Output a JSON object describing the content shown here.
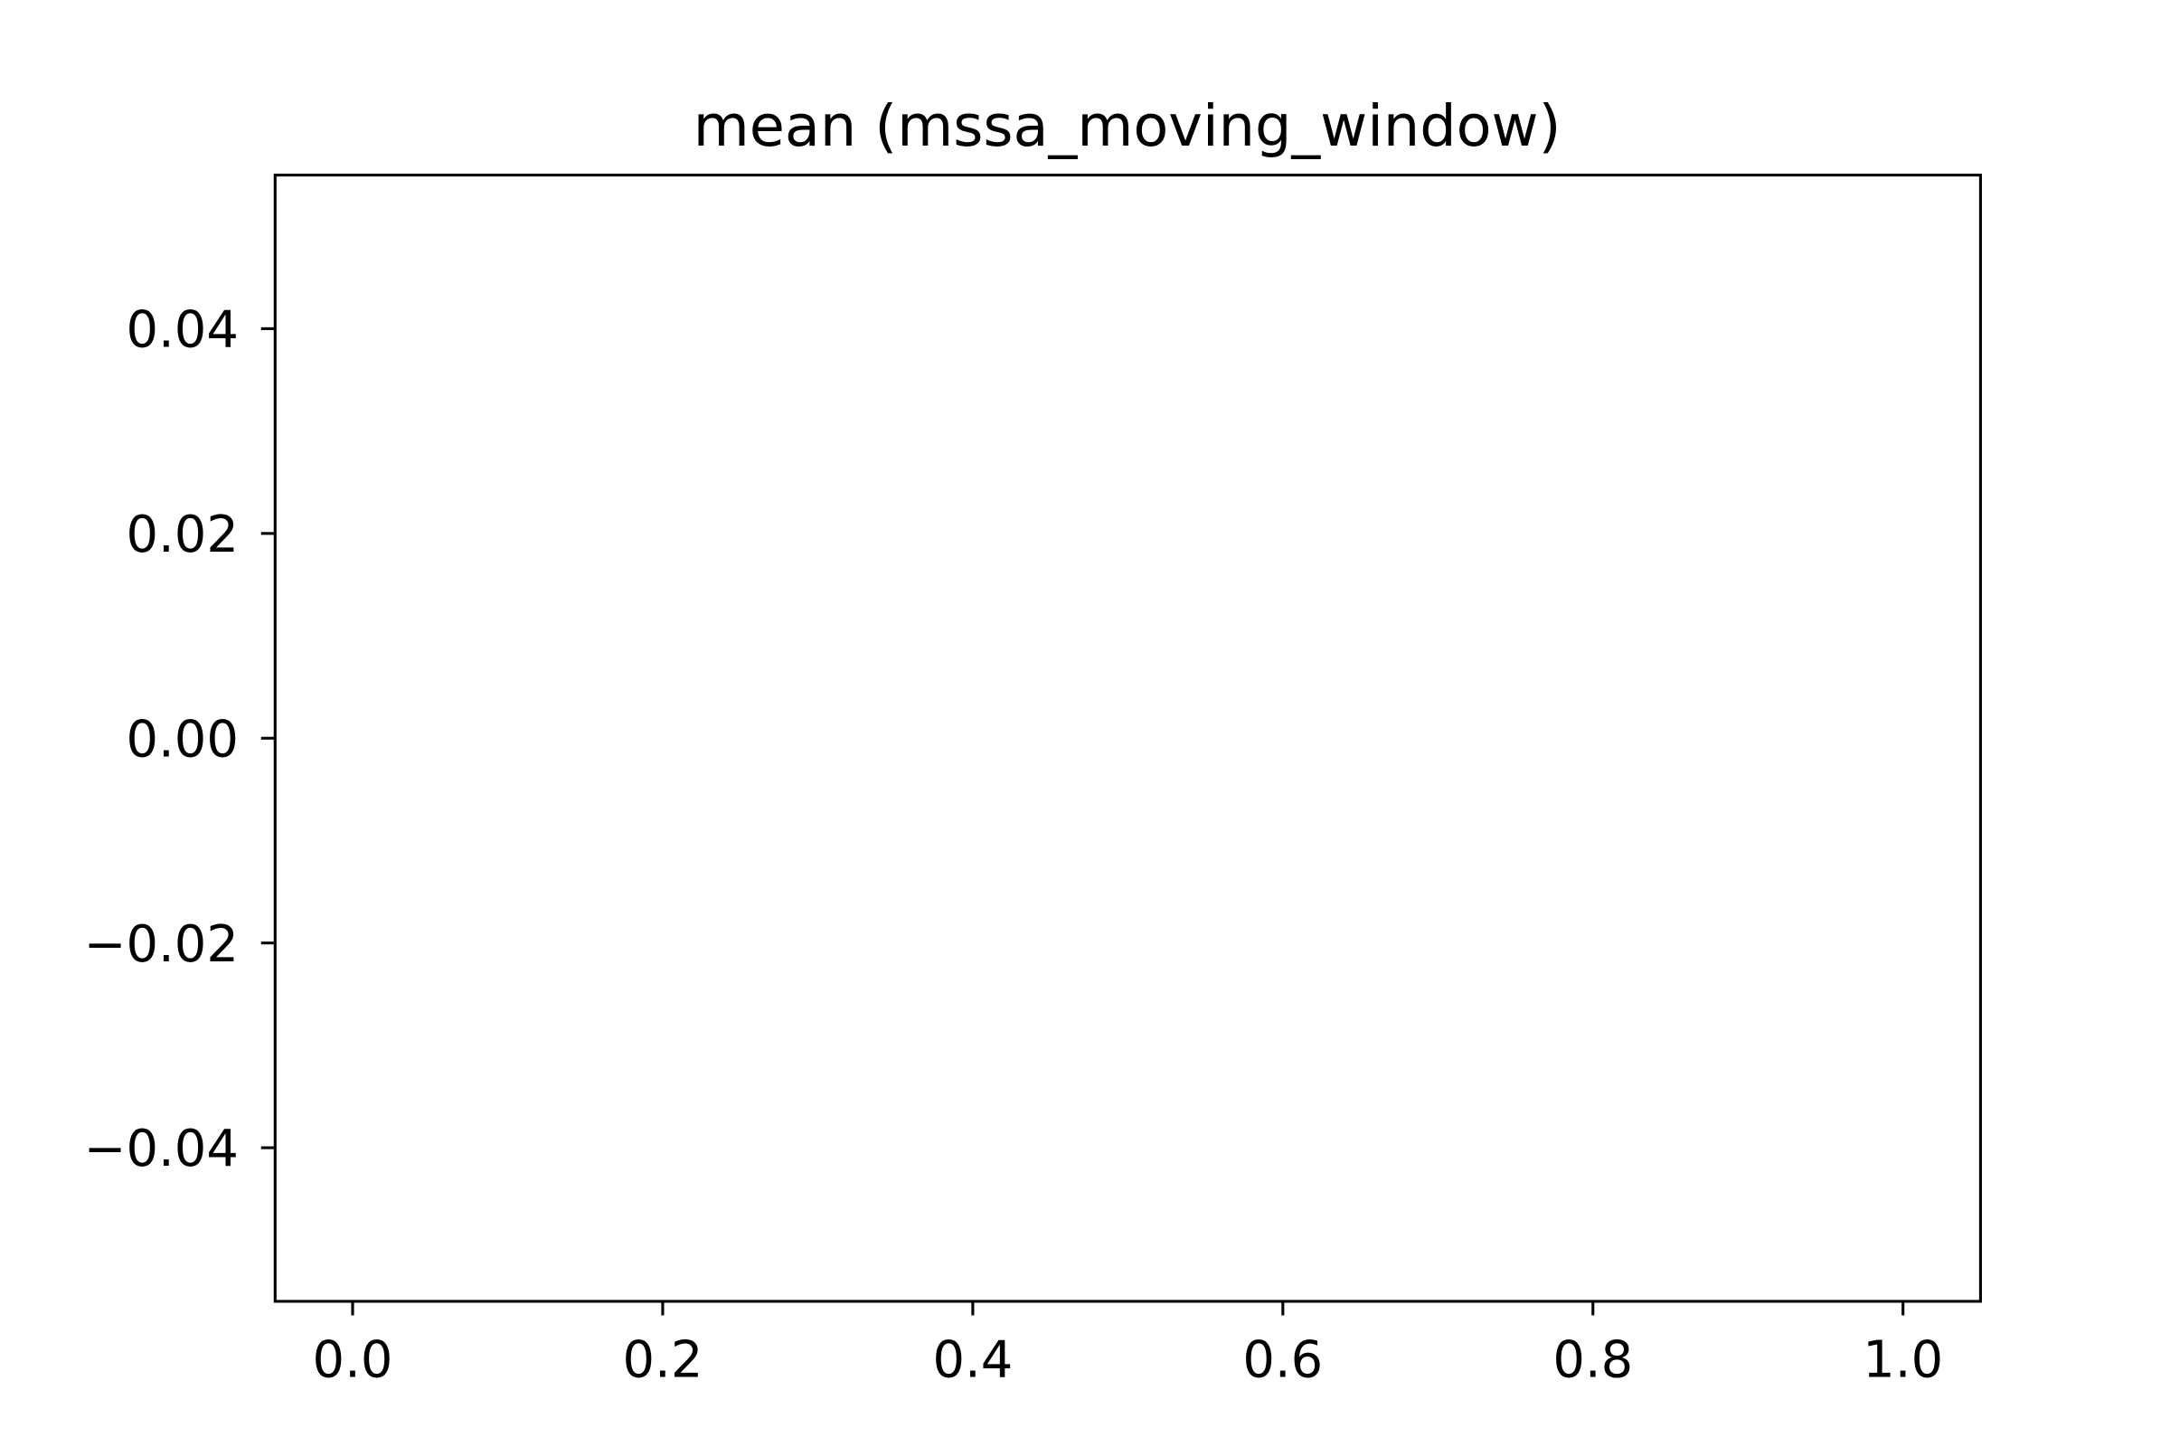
{
  "chart_data": {
    "type": "line",
    "title": "mean (mssa_moving_window)",
    "xlabel": "",
    "ylabel": "",
    "x_ticks": [
      "0.0",
      "0.2",
      "0.4",
      "0.6",
      "0.8",
      "1.0"
    ],
    "x_tick_values": [
      0.0,
      0.2,
      0.4,
      0.6,
      0.8,
      1.0
    ],
    "y_ticks": [
      "0.04",
      "0.02",
      "0.00",
      "−0.02",
      "−0.04"
    ],
    "y_tick_values": [
      0.04,
      0.02,
      0.0,
      -0.02,
      -0.04
    ],
    "xlim": [
      -0.05,
      1.05
    ],
    "ylim": [
      -0.055,
      0.055
    ],
    "series": [],
    "grid": false,
    "legend": "none",
    "colors": {
      "axis": "#000000",
      "background": "#ffffff"
    }
  }
}
